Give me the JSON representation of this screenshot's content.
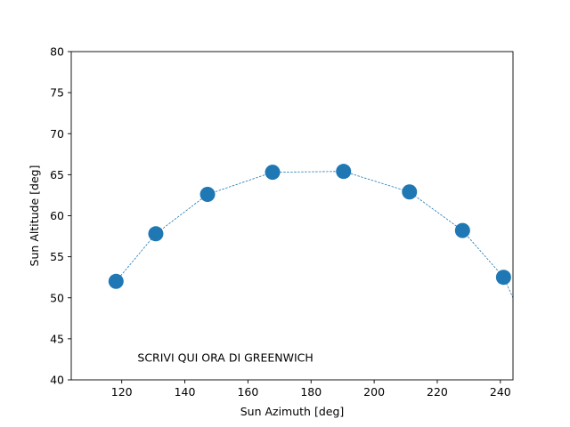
{
  "chart_data": {
    "type": "scatter",
    "title": "",
    "xlabel": "Sun Azimuth [deg]",
    "ylabel": "Sun Altitude [deg]",
    "xlim": [
      104,
      244
    ],
    "ylim": [
      40,
      80
    ],
    "xticks": [
      120,
      140,
      160,
      180,
      200,
      220,
      240
    ],
    "yticks": [
      40,
      45,
      50,
      55,
      60,
      65,
      70,
      75,
      80
    ],
    "grid": false,
    "legend": "none",
    "line_style": "dashed",
    "color": "#1f77b4",
    "series": [
      {
        "x": [
          118.2,
          130.8,
          147.2,
          167.8,
          190.3,
          211.2,
          228.0,
          241.0
        ],
        "y": [
          52.0,
          57.8,
          62.6,
          65.3,
          65.4,
          62.9,
          58.2,
          52.5
        ]
      }
    ],
    "extrapolated_line_end": {
      "x": 250,
      "y": 45
    },
    "annotations": [
      {
        "text": "SCRIVI QUI ORA DI GREENWICH",
        "x": 125,
        "y": 42.2
      }
    ]
  }
}
